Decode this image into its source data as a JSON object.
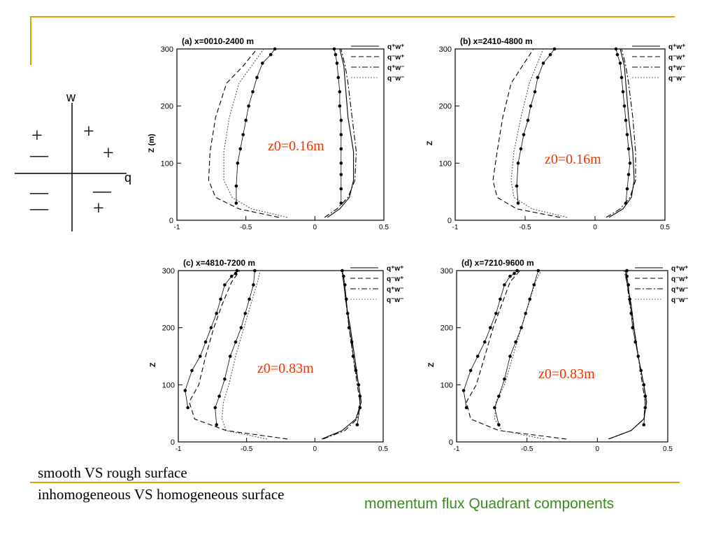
{
  "colors": {
    "accent_line": "#d9a400",
    "annotation": "#ee3300",
    "footer_text": "#3b8a26"
  },
  "quadrant_diagram": {
    "axis_w": "w",
    "axis_q": "q",
    "quadrants": {
      "upper_left": [
        "+",
        "—"
      ],
      "upper_right": [
        "+",
        "+"
      ],
      "lower_left": [
        "—",
        "—"
      ],
      "lower_right": [
        "—",
        "+"
      ]
    }
  },
  "captions": {
    "line1": "smooth VS rough surface",
    "line2": "inhomogeneous VS homogeneous surface"
  },
  "footer": "momentum flux Quadrant components",
  "chart_data": [
    {
      "type": "line",
      "title": "(a) x=0010-2400 m",
      "ylabel": "Z (m)",
      "xlim": [
        -1,
        0.5
      ],
      "ylim": [
        0,
        300
      ],
      "xticks": [
        "-1",
        "-0.5",
        "0",
        "0.5"
      ],
      "yticks": [
        "0",
        "100",
        "200",
        "300"
      ],
      "annotation": "z0=0.16m",
      "legend_position": "top-right",
      "legend": [
        "q⁺w⁺",
        "q⁻w⁺",
        "q⁺w⁻",
        "q⁻w⁻"
      ],
      "series": [
        {
          "name": "q⁺w⁺",
          "style": "solid",
          "markers": false,
          "x": [
            0.09,
            0.18,
            0.25,
            0.28,
            0.28,
            0.24,
            0.22,
            0.21,
            0.18
          ],
          "y": [
            5,
            20,
            40,
            70,
            120,
            180,
            240,
            270,
            300
          ]
        },
        {
          "name": "q⁻w⁺",
          "style": "dashed",
          "markers": false,
          "x": [
            -0.26,
            -0.55,
            -0.72,
            -0.77,
            -0.76,
            -0.72,
            -0.64,
            -0.52,
            -0.42
          ],
          "y": [
            5,
            20,
            40,
            70,
            120,
            180,
            240,
            270,
            300
          ]
        },
        {
          "name": "q⁺w⁻",
          "style": "dashdot",
          "markers": false,
          "x": [
            0.07,
            0.16,
            0.24,
            0.29,
            0.3,
            0.27,
            0.24,
            0.22,
            0.19
          ],
          "y": [
            5,
            20,
            40,
            70,
            120,
            180,
            240,
            270,
            300
          ]
        },
        {
          "name": "q⁻w⁻",
          "style": "dotted",
          "markers": false,
          "x": [
            -0.2,
            -0.46,
            -0.6,
            -0.66,
            -0.66,
            -0.62,
            -0.55,
            -0.46,
            -0.37
          ],
          "y": [
            5,
            20,
            40,
            70,
            120,
            180,
            240,
            270,
            300
          ]
        },
        {
          "name": "markers",
          "style": "thin",
          "markers": true,
          "x": [
            0.19,
            0.19,
            0.19,
            0.19,
            0.19,
            0.19,
            0.19,
            0.18,
            0.18,
            0.17,
            0.16,
            0.15,
            0.14
          ],
          "y": [
            30,
            55,
            80,
            100,
            125,
            150,
            175,
            200,
            225,
            250,
            275,
            290,
            300
          ]
        },
        {
          "name": "markers",
          "style": "thin",
          "markers": true,
          "x": [
            -0.57,
            -0.57,
            -0.56,
            -0.54,
            -0.52,
            -0.5,
            -0.48,
            -0.45,
            -0.42,
            -0.38,
            -0.32,
            -0.29
          ],
          "y": [
            30,
            60,
            100,
            125,
            150,
            175,
            200,
            225,
            250,
            275,
            290,
            300
          ]
        }
      ]
    },
    {
      "type": "line",
      "title": "(b) x=2410-4800 m",
      "ylabel": "Z",
      "xlim": [
        -1,
        0.5
      ],
      "ylim": [
        0,
        300
      ],
      "xticks": [
        "-1",
        "-0.5",
        "0",
        "0.5"
      ],
      "yticks": [
        "0",
        "100",
        "200",
        "300"
      ],
      "annotation": "z0=0.16m",
      "legend_position": "top-right",
      "legend": [
        "q⁺w⁺",
        "q⁻w⁺",
        "q⁺w⁻",
        "q⁻w⁻"
      ],
      "series": [
        {
          "name": "q⁺w⁺",
          "style": "solid",
          "markers": false,
          "x": [
            0.1,
            0.2,
            0.26,
            0.28,
            0.27,
            0.24,
            0.22,
            0.21,
            0.18
          ],
          "y": [
            5,
            20,
            40,
            70,
            120,
            180,
            240,
            270,
            300
          ]
        },
        {
          "name": "q⁻w⁺",
          "style": "dashed",
          "markers": false,
          "x": [
            -0.25,
            -0.56,
            -0.7,
            -0.73,
            -0.7,
            -0.66,
            -0.6,
            -0.52,
            -0.44
          ],
          "y": [
            5,
            20,
            40,
            70,
            120,
            180,
            240,
            270,
            300
          ]
        },
        {
          "name": "q⁺w⁻",
          "style": "dashdot",
          "markers": false,
          "x": [
            0.08,
            0.18,
            0.25,
            0.29,
            0.29,
            0.27,
            0.24,
            0.22,
            0.19
          ],
          "y": [
            5,
            20,
            40,
            70,
            120,
            180,
            240,
            270,
            300
          ]
        },
        {
          "name": "q⁻w⁻",
          "style": "dotted",
          "markers": false,
          "x": [
            -0.2,
            -0.45,
            -0.58,
            -0.6,
            -0.58,
            -0.53,
            -0.47,
            -0.42,
            -0.37
          ],
          "y": [
            5,
            20,
            40,
            70,
            120,
            180,
            240,
            270,
            300
          ]
        },
        {
          "name": "markers",
          "style": "thin",
          "markers": true,
          "x": [
            0.22,
            0.23,
            0.24,
            0.25,
            0.24,
            0.23,
            0.22,
            0.21,
            0.2,
            0.19,
            0.18,
            0.16,
            0.15
          ],
          "y": [
            30,
            55,
            80,
            100,
            125,
            150,
            175,
            200,
            225,
            250,
            275,
            290,
            300
          ]
        },
        {
          "name": "markers",
          "style": "thin",
          "markers": true,
          "x": [
            -0.55,
            -0.56,
            -0.55,
            -0.53,
            -0.51,
            -0.48,
            -0.46,
            -0.43,
            -0.41,
            -0.37,
            -0.32,
            -0.29
          ],
          "y": [
            30,
            60,
            100,
            125,
            150,
            175,
            200,
            225,
            250,
            275,
            290,
            300
          ]
        }
      ]
    },
    {
      "type": "line",
      "title": "(c) x=4810-7200 m",
      "ylabel": "Z",
      "xlim": [
        -1,
        0.5
      ],
      "ylim": [
        0,
        300
      ],
      "xticks": [
        "-1",
        "-0.5",
        "0",
        "0.5"
      ],
      "yticks": [
        "0",
        "100",
        "200",
        "300"
      ],
      "annotation": "z0=0.83m",
      "legend_position": "top-right",
      "legend": [
        "q⁺w⁺",
        "q⁻w⁺",
        "q⁺w⁻",
        "q⁻w⁻"
      ],
      "series": [
        {
          "name": "q⁺w⁺",
          "style": "solid",
          "markers": false,
          "x": [
            0.05,
            0.2,
            0.3,
            0.34,
            0.32,
            0.29,
            0.26,
            0.23,
            0.21,
            0.2
          ],
          "y": [
            5,
            20,
            40,
            70,
            100,
            150,
            200,
            240,
            280,
            300
          ]
        },
        {
          "name": "q⁻w⁺",
          "style": "dashed",
          "markers": false,
          "x": [
            -0.2,
            -0.65,
            -0.88,
            -0.92,
            -0.85,
            -0.8,
            -0.74,
            -0.68,
            -0.61,
            -0.55
          ],
          "y": [
            5,
            20,
            40,
            70,
            100,
            150,
            200,
            240,
            280,
            300
          ]
        },
        {
          "name": "q⁺w⁻",
          "style": "dashdot",
          "markers": false,
          "x": [
            0.06,
            0.22,
            0.31,
            0.33,
            0.31,
            0.28,
            0.25,
            0.23,
            0.21,
            0.2
          ],
          "y": [
            5,
            20,
            40,
            70,
            100,
            150,
            200,
            240,
            280,
            300
          ]
        },
        {
          "name": "q⁻w⁻",
          "style": "dotted",
          "markers": false,
          "x": [
            -0.35,
            -0.65,
            -0.68,
            -0.67,
            -0.63,
            -0.58,
            -0.52,
            -0.47,
            -0.42,
            -0.4
          ],
          "y": [
            5,
            20,
            40,
            70,
            100,
            150,
            200,
            240,
            280,
            300
          ]
        },
        {
          "name": "markers",
          "style": "thin",
          "markers": true,
          "x": [
            0.31,
            0.33,
            0.33,
            0.32,
            0.3,
            0.28,
            0.27,
            0.25,
            0.24,
            0.23,
            0.22,
            0.21,
            0.2
          ],
          "y": [
            30,
            60,
            80,
            100,
            125,
            150,
            175,
            200,
            225,
            250,
            275,
            290,
            300
          ]
        },
        {
          "name": "markers",
          "style": "thin",
          "markers": true,
          "x": [
            -0.93,
            -0.95,
            -0.9,
            -0.84,
            -0.8,
            -0.76,
            -0.72,
            -0.69,
            -0.66,
            -0.61,
            -0.58,
            -0.57
          ],
          "y": [
            60,
            90,
            125,
            150,
            175,
            200,
            225,
            250,
            275,
            290,
            295,
            300
          ]
        },
        {
          "name": "markers",
          "style": "thin",
          "markers": true,
          "x": [
            -0.72,
            -0.73,
            -0.7,
            -0.66,
            -0.62,
            -0.58,
            -0.54,
            -0.51,
            -0.48,
            -0.45,
            -0.44
          ],
          "y": [
            30,
            60,
            80,
            110,
            150,
            175,
            200,
            225,
            250,
            275,
            300
          ]
        }
      ]
    },
    {
      "type": "line",
      "title": "(d) x=7210-9600 m",
      "ylabel": "Z",
      "xlim": [
        -1,
        0.5
      ],
      "ylim": [
        0,
        300
      ],
      "xticks": [
        "-1",
        "-0.5",
        "0",
        "0.5"
      ],
      "yticks": [
        "0",
        "100",
        "200",
        "300"
      ],
      "annotation": "z0=0.83m",
      "legend_position": "top-right",
      "legend": [
        "q⁺w⁺",
        "q⁻w⁺",
        "q⁺w⁻",
        "q⁻w⁻"
      ],
      "series": [
        {
          "name": "q⁺w⁺",
          "style": "solid",
          "markers": false,
          "x": [
            0.08,
            0.24,
            0.33,
            0.35,
            0.33,
            0.29,
            0.26,
            0.24,
            0.21,
            0.2
          ],
          "y": [
            5,
            20,
            40,
            70,
            100,
            150,
            200,
            240,
            280,
            300
          ]
        },
        {
          "name": "q⁻w⁺",
          "style": "dashed",
          "markers": false,
          "x": [
            -0.22,
            -0.7,
            -0.9,
            -0.93,
            -0.86,
            -0.8,
            -0.74,
            -0.68,
            -0.62,
            -0.55
          ],
          "y": [
            5,
            20,
            40,
            70,
            100,
            150,
            200,
            240,
            280,
            300
          ]
        },
        {
          "name": "q⁺w⁻",
          "style": "dashdot",
          "markers": false,
          "x": [
            0.08,
            0.24,
            0.33,
            0.34,
            0.32,
            0.29,
            0.26,
            0.23,
            0.21,
            0.19
          ],
          "y": [
            5,
            20,
            40,
            70,
            100,
            150,
            200,
            240,
            280,
            300
          ]
        },
        {
          "name": "q⁻w⁻",
          "style": "dotted",
          "markers": false,
          "x": [
            -0.38,
            -0.68,
            -0.73,
            -0.72,
            -0.66,
            -0.6,
            -0.54,
            -0.49,
            -0.44,
            -0.4
          ],
          "y": [
            5,
            20,
            40,
            70,
            100,
            150,
            200,
            240,
            280,
            300
          ]
        },
        {
          "name": "markers",
          "style": "thin",
          "markers": true,
          "x": [
            0.33,
            0.34,
            0.34,
            0.33,
            0.31,
            0.29,
            0.27,
            0.25,
            0.24,
            0.23,
            0.22,
            0.21,
            0.21
          ],
          "y": [
            30,
            60,
            80,
            100,
            125,
            150,
            175,
            200,
            225,
            250,
            275,
            290,
            300
          ]
        },
        {
          "name": "markers",
          "style": "thin",
          "markers": true,
          "x": [
            -0.93,
            -0.95,
            -0.9,
            -0.85,
            -0.8,
            -0.76,
            -0.72,
            -0.69,
            -0.66,
            -0.62,
            -0.59,
            -0.57
          ],
          "y": [
            60,
            90,
            125,
            150,
            175,
            200,
            225,
            250,
            275,
            290,
            295,
            300
          ]
        },
        {
          "name": "markers",
          "style": "thin",
          "markers": true,
          "x": [
            -0.7,
            -0.73,
            -0.7,
            -0.66,
            -0.62,
            -0.58,
            -0.54,
            -0.51,
            -0.48,
            -0.45,
            -0.42
          ],
          "y": [
            30,
            60,
            80,
            110,
            150,
            175,
            200,
            225,
            250,
            275,
            300
          ]
        }
      ]
    }
  ]
}
